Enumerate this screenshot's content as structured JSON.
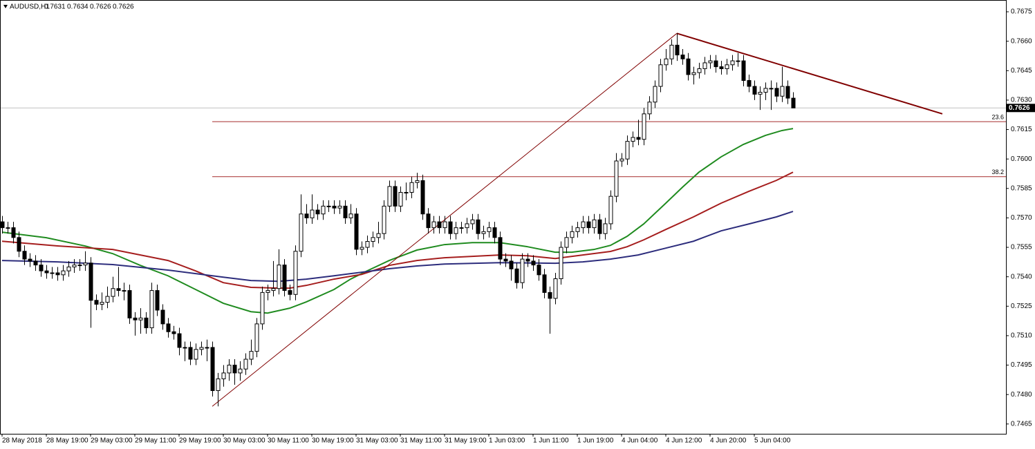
{
  "chart_data": {
    "type": "candlestick",
    "title": "AUDUSD,H1",
    "categories": [
      "28 May 2018",
      null,
      null,
      null,
      null,
      null,
      null,
      null,
      "28 May 19:00",
      null,
      null,
      null,
      null,
      null,
      null,
      null,
      "29 May 03:00",
      null,
      null,
      null,
      null,
      null,
      null,
      null,
      "29 May 11:00",
      null,
      null,
      null,
      null,
      null,
      null,
      null,
      "29 May 19:00",
      null,
      null,
      null,
      null,
      null,
      null,
      null,
      "30 May 03:00",
      null,
      null,
      null,
      null,
      null,
      null,
      null,
      "30 May 11:00",
      null,
      null,
      null,
      null,
      null,
      null,
      null,
      "30 May 19:00",
      null,
      null,
      null,
      null,
      null,
      null,
      null,
      "31 May 03:00",
      null,
      null,
      null,
      null,
      null,
      null,
      null,
      "31 May 11:00",
      null,
      null,
      null,
      null,
      null,
      null,
      null,
      "31 May 19:00",
      null,
      null,
      null,
      null,
      null,
      null,
      null,
      "1 Jun 03:00",
      null,
      null,
      null,
      null,
      null,
      null,
      null,
      "1 Jun 11:00",
      null,
      null,
      null,
      null,
      null,
      null,
      null,
      "1 Jun 19:00",
      null,
      null,
      null,
      null,
      null,
      null,
      null,
      "4 Jun 04:00",
      null,
      null,
      null,
      null,
      null,
      null,
      null,
      "4 Jun 12:00",
      null,
      null,
      null,
      null,
      null,
      null,
      null,
      "4 Jun 20:00",
      null,
      null,
      null,
      null,
      null,
      null,
      null,
      "5 Jun 04:00",
      null,
      null,
      null,
      null,
      null,
      null,
      null
    ],
    "open": [
      0.7568,
      0.7565,
      0.7565,
      0.756,
      0.7553,
      0.7549,
      0.7548,
      0.7546,
      0.7543,
      0.7542,
      0.7542,
      0.7541,
      0.7543,
      0.7545,
      0.7546,
      0.7546,
      0.7547,
      0.7528,
      0.7526,
      0.7527,
      0.753,
      0.7534,
      0.7533,
      0.7533,
      0.7519,
      0.7518,
      0.7519,
      0.7514,
      0.7533,
      0.7523,
      0.7516,
      0.7512,
      0.7511,
      0.7504,
      0.7504,
      0.7498,
      0.7503,
      0.7504,
      0.7504,
      0.7482,
      0.7488,
      0.7491,
      0.7495,
      0.7491,
      0.7493,
      0.7498,
      0.7502,
      0.7516,
      0.7532,
      0.7533,
      0.7534,
      0.7546,
      0.7533,
      0.7531,
      0.7553,
      0.7572,
      0.757,
      0.7574,
      0.7572,
      0.7576,
      0.7576,
      0.7575,
      0.7576,
      0.757,
      0.7572,
      0.7554,
      0.7555,
      0.7558,
      0.756,
      0.7562,
      0.7576,
      0.7586,
      0.7576,
      0.7583,
      0.7583,
      0.7588,
      0.7589,
      0.7572,
      0.7565,
      0.7568,
      0.7565,
      0.7568,
      0.7562,
      0.7565,
      0.7565,
      0.7567,
      0.7569,
      0.7562,
      0.7563,
      0.7565,
      0.756,
      0.7549,
      0.7548,
      0.7544,
      0.7537,
      0.7549,
      0.7548,
      0.7546,
      0.7541,
      0.7532,
      0.7529,
      0.7539,
      0.7555,
      0.756,
      0.7563,
      0.7565,
      0.7568,
      0.7565,
      0.7569,
      0.7562,
      0.7567,
      0.7581,
      0.7599,
      0.76,
      0.7609,
      0.7611,
      0.761,
      0.7623,
      0.7629,
      0.7637,
      0.7648,
      0.7651,
      0.7658,
      0.7653,
      0.7651,
      0.7643,
      0.7644,
      0.7646,
      0.7649,
      0.765,
      0.7647,
      0.7646,
      0.7648,
      0.765,
      0.765,
      0.764,
      0.7637,
      0.7633,
      0.7634,
      0.7636,
      0.7636,
      0.7632,
      0.7637,
      0.7631
    ],
    "high": [
      0.7571,
      0.7568,
      0.7568,
      0.7563,
      0.7556,
      0.7552,
      0.7551,
      0.7549,
      0.7546,
      0.7545,
      0.7545,
      0.7546,
      0.7548,
      0.7549,
      0.7549,
      0.7553,
      0.755,
      0.7531,
      0.7532,
      0.7535,
      0.754,
      0.7545,
      0.7537,
      0.7536,
      0.7522,
      0.7524,
      0.7522,
      0.7537,
      0.7536,
      0.7526,
      0.7519,
      0.7515,
      0.7514,
      0.7507,
      0.7507,
      0.7506,
      0.7507,
      0.7508,
      0.7507,
      0.7491,
      0.7495,
      0.7498,
      0.7498,
      0.7497,
      0.7501,
      0.7508,
      0.7519,
      0.7535,
      0.7536,
      0.7548,
      0.7554,
      0.7549,
      0.7536,
      0.7556,
      0.7582,
      0.7577,
      0.7582,
      0.7577,
      0.7579,
      0.7579,
      0.7579,
      0.7579,
      0.7579,
      0.7577,
      0.7575,
      0.7558,
      0.7561,
      0.7563,
      0.7568,
      0.7579,
      0.7589,
      0.7589,
      0.7586,
      0.7588,
      0.7591,
      0.7593,
      0.7592,
      0.7575,
      0.7571,
      0.7571,
      0.7571,
      0.7571,
      0.7568,
      0.7568,
      0.757,
      0.7572,
      0.7572,
      0.7566,
      0.7568,
      0.7568,
      0.7563,
      0.7552,
      0.7551,
      0.7547,
      0.7552,
      0.7552,
      0.7551,
      0.7549,
      0.7544,
      0.7535,
      0.7542,
      0.7558,
      0.7563,
      0.7566,
      0.7568,
      0.7571,
      0.7571,
      0.7572,
      0.7572,
      0.757,
      0.7584,
      0.7603,
      0.7603,
      0.7612,
      0.7614,
      0.762,
      0.7626,
      0.7632,
      0.764,
      0.7651,
      0.7656,
      0.7661,
      0.7664,
      0.7656,
      0.7654,
      0.7647,
      0.7649,
      0.7652,
      0.7653,
      0.7653,
      0.765,
      0.7651,
      0.7653,
      0.7654,
      0.7653,
      0.7643,
      0.764,
      0.7637,
      0.7639,
      0.764,
      0.7639,
      0.7647,
      0.764,
      0.7634
    ],
    "low": [
      0.7562,
      0.7562,
      0.7557,
      0.755,
      0.7546,
      0.7545,
      0.7543,
      0.754,
      0.7539,
      0.7539,
      0.7538,
      0.7538,
      0.754,
      0.7542,
      0.7543,
      0.7543,
      0.7514,
      0.7523,
      0.7523,
      0.7524,
      0.7527,
      0.753,
      0.7528,
      0.7516,
      0.751,
      0.7511,
      0.7511,
      0.7511,
      0.752,
      0.7513,
      0.7509,
      0.7508,
      0.75,
      0.7497,
      0.7495,
      0.7495,
      0.75,
      0.7497,
      0.7479,
      0.7474,
      0.7484,
      0.7487,
      0.7485,
      0.7487,
      0.749,
      0.7495,
      0.7499,
      0.7513,
      0.7528,
      0.753,
      0.7531,
      0.753,
      0.7528,
      0.7528,
      0.755,
      0.7567,
      0.7567,
      0.7569,
      0.7569,
      0.7573,
      0.7572,
      0.7572,
      0.7567,
      0.7567,
      0.7551,
      0.7551,
      0.7552,
      0.7555,
      0.7557,
      0.7559,
      0.7573,
      0.7573,
      0.7573,
      0.7579,
      0.758,
      0.7585,
      0.7569,
      0.7562,
      0.7562,
      0.7562,
      0.7562,
      0.7559,
      0.7559,
      0.7562,
      0.7562,
      0.7564,
      0.7559,
      0.7559,
      0.756,
      0.7557,
      0.7546,
      0.7545,
      0.7538,
      0.7534,
      0.7534,
      0.7545,
      0.7543,
      0.7538,
      0.7529,
      0.7511,
      0.7526,
      0.7536,
      0.7552,
      0.7557,
      0.756,
      0.7562,
      0.7562,
      0.7562,
      0.7559,
      0.7559,
      0.7564,
      0.7578,
      0.7596,
      0.7597,
      0.7606,
      0.7607,
      0.7607,
      0.762,
      0.7626,
      0.7634,
      0.7645,
      0.7648,
      0.765,
      0.7648,
      0.764,
      0.7638,
      0.7641,
      0.7643,
      0.7646,
      0.7644,
      0.7643,
      0.7643,
      0.7645,
      0.7647,
      0.7637,
      0.7634,
      0.763,
      0.7625,
      0.763,
      0.7625,
      0.7629,
      0.7629,
      0.7628,
      0.7626
    ],
    "close": [
      0.7565,
      0.7565,
      0.756,
      0.7553,
      0.7549,
      0.7548,
      0.7546,
      0.7543,
      0.7542,
      0.7542,
      0.7541,
      0.7543,
      0.7545,
      0.7546,
      0.7546,
      0.7547,
      0.7528,
      0.7526,
      0.7527,
      0.753,
      0.7534,
      0.7533,
      0.7533,
      0.7519,
      0.7518,
      0.7519,
      0.7514,
      0.7533,
      0.7523,
      0.7516,
      0.7512,
      0.7511,
      0.7504,
      0.7504,
      0.7498,
      0.7503,
      0.7504,
      0.7504,
      0.7482,
      0.7488,
      0.7491,
      0.7495,
      0.7491,
      0.7493,
      0.7498,
      0.7502,
      0.7516,
      0.7532,
      0.7533,
      0.7534,
      0.7546,
      0.7533,
      0.7531,
      0.7553,
      0.7572,
      0.757,
      0.7574,
      0.7572,
      0.7576,
      0.7576,
      0.7575,
      0.7576,
      0.757,
      0.7572,
      0.7554,
      0.7555,
      0.7558,
      0.756,
      0.7562,
      0.7576,
      0.7586,
      0.7576,
      0.7583,
      0.7583,
      0.7588,
      0.7589,
      0.7572,
      0.7565,
      0.7568,
      0.7565,
      0.7568,
      0.7562,
      0.7565,
      0.7565,
      0.7567,
      0.7569,
      0.7562,
      0.7563,
      0.7565,
      0.756,
      0.7549,
      0.7548,
      0.7544,
      0.7537,
      0.7549,
      0.7548,
      0.7546,
      0.7541,
      0.7532,
      0.7529,
      0.7539,
      0.7555,
      0.756,
      0.7563,
      0.7565,
      0.7568,
      0.7565,
      0.7569,
      0.7562,
      0.7567,
      0.7581,
      0.7599,
      0.76,
      0.7609,
      0.7611,
      0.761,
      0.7623,
      0.7629,
      0.7637,
      0.7648,
      0.7651,
      0.7658,
      0.7653,
      0.7651,
      0.7643,
      0.7644,
      0.7646,
      0.7649,
      0.765,
      0.7647,
      0.7646,
      0.7648,
      0.765,
      0.765,
      0.764,
      0.7637,
      0.7633,
      0.7634,
      0.7636,
      0.7636,
      0.7632,
      0.7637,
      0.7631,
      0.7626
    ],
    "up_color": "#ffffff",
    "down_color": "#000000",
    "ylim": [
      0.746,
      0.7681
    ],
    "yticks": [
      0.7675,
      {
        "value": 0.766,
        "label": "0.7660"
      },
      0.7645,
      {
        "value": 0.763,
        "label": "0.7630"
      },
      0.7615,
      {
        "value": 0.76,
        "label": "0.7600"
      },
      0.7585,
      {
        "value": 0.757,
        "label": "0.7570"
      },
      0.7555,
      {
        "value": 0.754,
        "label": "0.7540"
      },
      0.7525,
      {
        "value": 0.751,
        "label": "0.7510"
      },
      0.7495,
      {
        "value": 0.748,
        "label": "0.7480"
      },
      0.7465
    ],
    "moving_averages": [
      {
        "color": "#1f8b1f",
        "x": [
          0,
          8,
          15,
          20,
          25,
          30,
          35,
          40,
          45,
          48,
          52,
          55,
          60,
          63,
          66,
          70,
          75,
          80,
          85,
          90,
          95,
          100,
          103,
          107,
          110,
          113,
          116,
          120,
          123,
          126,
          130,
          134,
          138,
          141,
          143
        ],
        "values": [
          0.75627,
          0.75599,
          0.75557,
          0.75518,
          0.75458,
          0.75405,
          0.75335,
          0.75265,
          0.75222,
          0.75215,
          0.7524,
          0.75272,
          0.75335,
          0.75388,
          0.7543,
          0.75483,
          0.75536,
          0.75564,
          0.75574,
          0.75574,
          0.75553,
          0.75525,
          0.75525,
          0.75539,
          0.7556,
          0.75606,
          0.75669,
          0.75775,
          0.75856,
          0.75933,
          0.76011,
          0.76074,
          0.7612,
          0.76145,
          0.76155
        ]
      },
      {
        "color": "#a51d1d",
        "x": [
          0,
          10,
          20,
          30,
          35,
          40,
          45,
          50,
          52,
          55,
          60,
          65,
          70,
          75,
          80,
          85,
          90,
          95,
          100,
          105,
          110,
          113,
          116,
          120,
          125,
          130,
          135,
          140,
          143
        ],
        "values": [
          0.75581,
          0.75557,
          0.75539,
          0.75483,
          0.7543,
          0.7537,
          0.75346,
          0.75342,
          0.75342,
          0.75356,
          0.75388,
          0.75412,
          0.75458,
          0.75483,
          0.75497,
          0.75504,
          0.75511,
          0.75507,
          0.75493,
          0.75511,
          0.75529,
          0.75553,
          0.75588,
          0.75641,
          0.75705,
          0.75775,
          0.75835,
          0.75891,
          0.75933
        ]
      },
      {
        "color": "#2c2c7c",
        "x": [
          0,
          10,
          20,
          30,
          40,
          45,
          50,
          55,
          60,
          65,
          70,
          75,
          80,
          90,
          100,
          105,
          110,
          115,
          120,
          125,
          130,
          135,
          140,
          143
        ],
        "values": [
          0.75483,
          0.75476,
          0.75462,
          0.75434,
          0.75398,
          0.75381,
          0.75377,
          0.75388,
          0.75405,
          0.75423,
          0.75441,
          0.75455,
          0.75465,
          0.75472,
          0.75469,
          0.75476,
          0.7549,
          0.75511,
          0.75546,
          0.75581,
          0.75634,
          0.75669,
          0.75705,
          0.75733
        ]
      }
    ],
    "trendlines": [
      {
        "color": "#800000",
        "x": [
          38,
          122
        ],
        "values": [
          0.7474,
          0.7664
        ]
      },
      {
        "color": "#800000",
        "x": [
          122,
          170
        ],
        "values": [
          0.7664,
          0.7623
        ]
      }
    ],
    "fibonacci": {
      "color": "#a52a2a",
      "x_start": 38,
      "levels": [
        {
          "percent": 23.6,
          "price": 0.7619
        },
        {
          "percent": 38.2,
          "price": 0.7591
        }
      ]
    }
  }
}
